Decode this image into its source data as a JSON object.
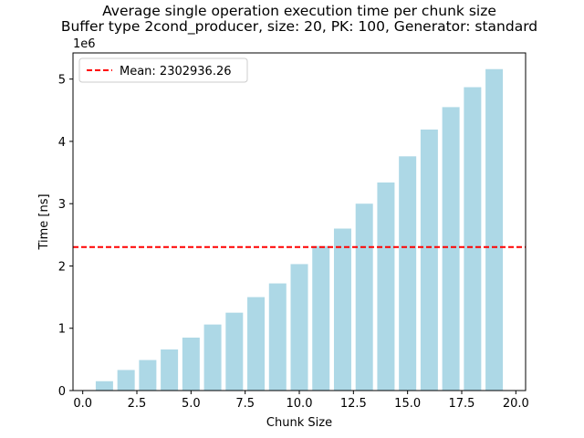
{
  "chart_data": {
    "type": "bar",
    "title": "Average single operation execution time per chunk size",
    "subtitle": "Buffer type 2cond_producer, size: 20, PK: 100, Generator: standard",
    "xlabel": "Chunk Size",
    "ylabel": "Time [ns]",
    "y_scale_label": "1e6",
    "xlim": [
      -0.45,
      20.45
    ],
    "ylim": [
      0,
      5420000
    ],
    "x_ticks": [
      0.0,
      2.5,
      5.0,
      7.5,
      10.0,
      12.5,
      15.0,
      17.5,
      20.0
    ],
    "x_tick_labels": [
      "0.0",
      "2.5",
      "5.0",
      "7.5",
      "10.0",
      "12.5",
      "15.0",
      "17.5",
      "20.0"
    ],
    "y_ticks": [
      0,
      1000000,
      2000000,
      3000000,
      4000000,
      5000000
    ],
    "y_tick_labels": [
      "0",
      "1",
      "2",
      "3",
      "4",
      "5"
    ],
    "bar_width": 0.8,
    "x": [
      1,
      2,
      3,
      4,
      5,
      6,
      7,
      8,
      9,
      10,
      11,
      12,
      13,
      14,
      15,
      16,
      17,
      18,
      19
    ],
    "values": [
      150000,
      330000,
      490000,
      660000,
      850000,
      1060000,
      1250000,
      1500000,
      1720000,
      2030000,
      2320000,
      2600000,
      3000000,
      3340000,
      3760000,
      4190000,
      4550000,
      4870000,
      5160000
    ],
    "bar_color": "#add8e6",
    "mean_line": {
      "value": 2302936.26,
      "label": "Mean: 2302936.26",
      "color": "#ff0000",
      "style": "dashed"
    },
    "legend_position": "upper-left",
    "grid": false
  }
}
